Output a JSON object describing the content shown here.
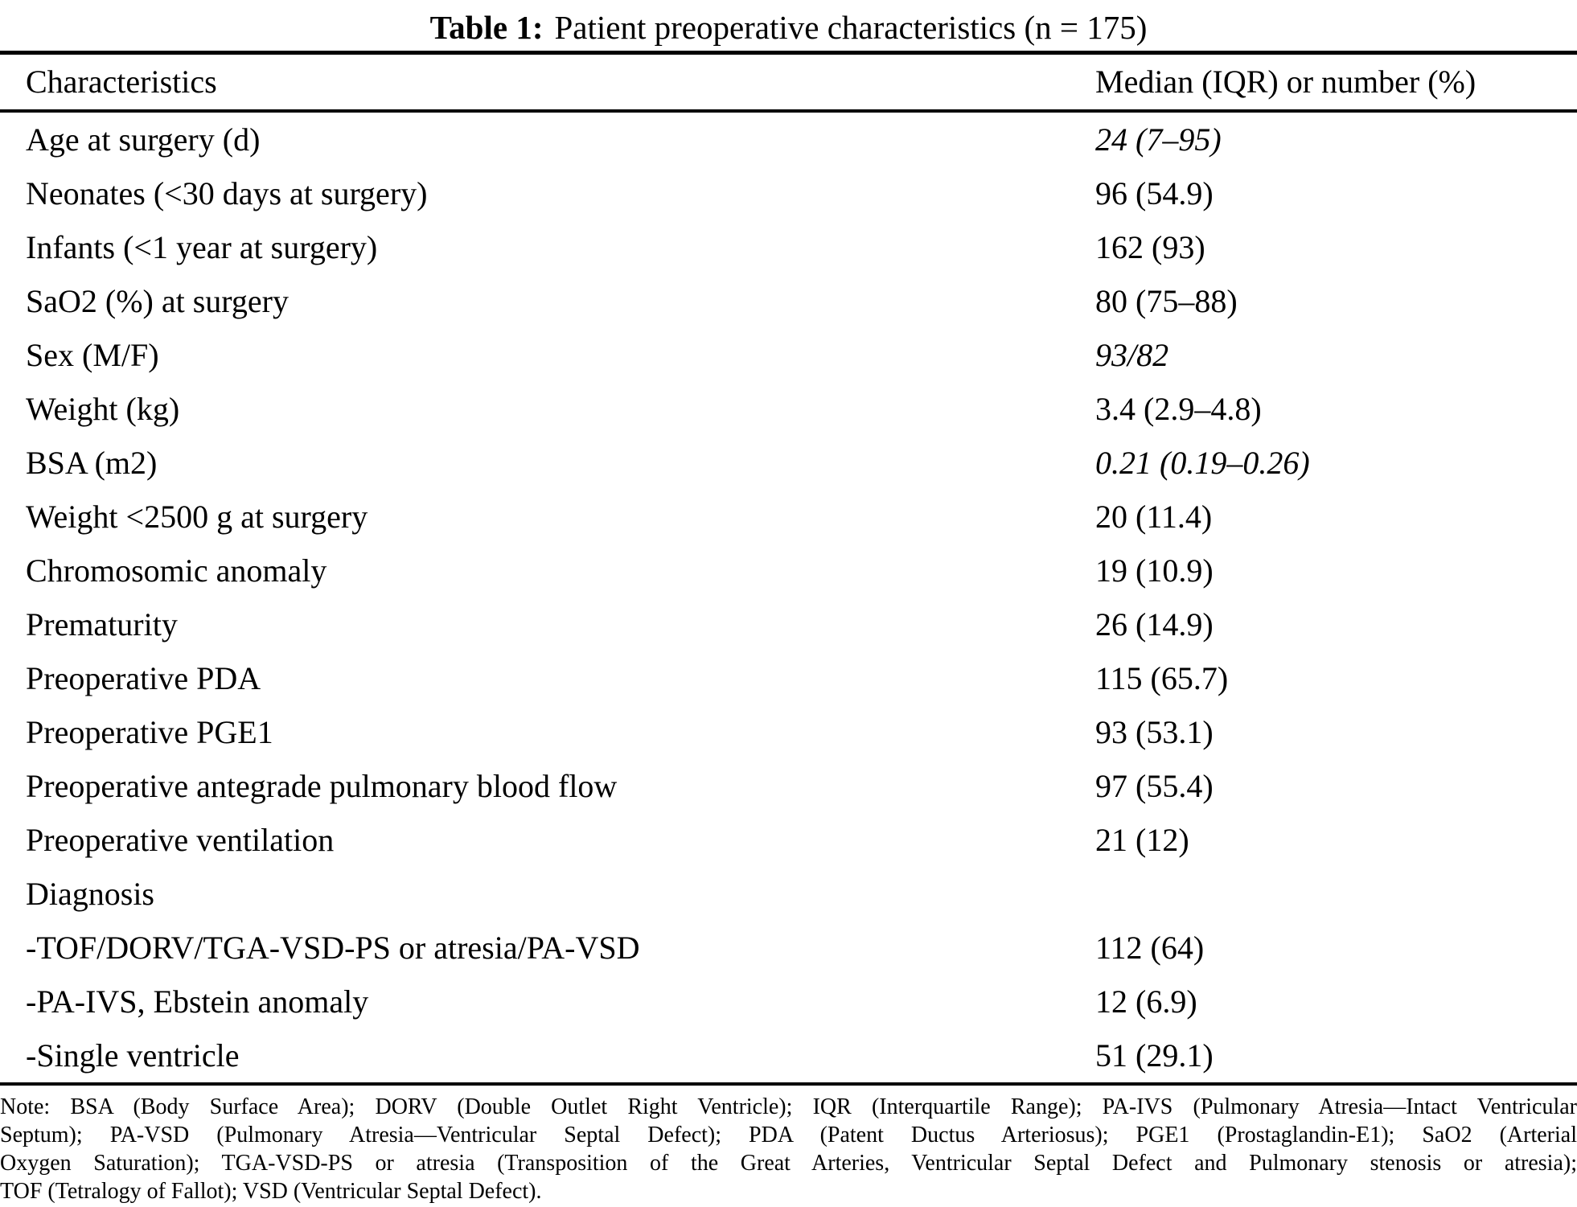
{
  "title": {
    "label": "Table 1:",
    "text": "Patient preoperative characteristics (n = 175)"
  },
  "table": {
    "header": {
      "characteristics": "Characteristics",
      "values": "Median (IQR) or number (%)"
    },
    "rows": [
      {
        "label": "Age at surgery (d)",
        "value": "24 (7–95)",
        "value_italic": true
      },
      {
        "label": "Neonates (<30 days at surgery)",
        "value": "96 (54.9)",
        "value_italic": false
      },
      {
        "label": "Infants (<1 year at surgery)",
        "value": "162 (93)",
        "value_italic": false
      },
      {
        "label": "SaO2 (%) at surgery",
        "value": "80 (75–88)",
        "value_italic": false
      },
      {
        "label": "Sex (M/F)",
        "value": "93/82",
        "value_italic": true
      },
      {
        "label": "Weight (kg)",
        "value": "3.4 (2.9–4.8)",
        "value_italic": false
      },
      {
        "label": "BSA (m2)",
        "value": "0.21 (0.19–0.26)",
        "value_italic": true
      },
      {
        "label": "Weight <2500 g at surgery",
        "value": "20 (11.4)",
        "value_italic": false
      },
      {
        "label": "Chromosomic anomaly",
        "value": "19 (10.9)",
        "value_italic": false
      },
      {
        "label": "Prematurity",
        "value": "26 (14.9)",
        "value_italic": false
      },
      {
        "label": "Preoperative PDA",
        "value": "115 (65.7)",
        "value_italic": false
      },
      {
        "label": "Preoperative PGE1",
        "value": "93 (53.1)",
        "value_italic": false
      },
      {
        "label": "Preoperative antegrade pulmonary blood flow",
        "value": "97 (55.4)",
        "value_italic": false
      },
      {
        "label": "Preoperative ventilation",
        "value": "21 (12)",
        "value_italic": false
      },
      {
        "label": "Diagnosis",
        "value": "",
        "value_italic": false
      },
      {
        "label": "-TOF/DORV/TGA-VSD-PS or atresia/PA-VSD",
        "value": "112 (64)",
        "value_italic": false
      },
      {
        "label": "-PA-IVS, Ebstein anomaly",
        "value": "12 (6.9)",
        "value_italic": false
      },
      {
        "label": "-Single ventricle",
        "value": "51 (29.1)",
        "value_italic": false
      }
    ]
  },
  "note": {
    "lines": [
      "Note: BSA (Body Surface Area); DORV (Double Outlet Right Ventricle); IQR (Interquartile Range); PA-IVS (Pulmonary Atresia—Intact Ventricular",
      "Septum); PA-VSD (Pulmonary Atresia—Ventricular Septal Defect); PDA (Patent Ductus Arteriosus); PGE1 (Prostaglandin-E1); SaO2 (Arterial",
      "Oxygen Saturation); TGA-VSD-PS or atresia (Transposition of the Great Arteries, Ventricular Septal Defect and Pulmonary stenosis or atresia);",
      "TOF (Tetralogy of Fallot); VSD (Ventricular Septal Defect)."
    ]
  }
}
